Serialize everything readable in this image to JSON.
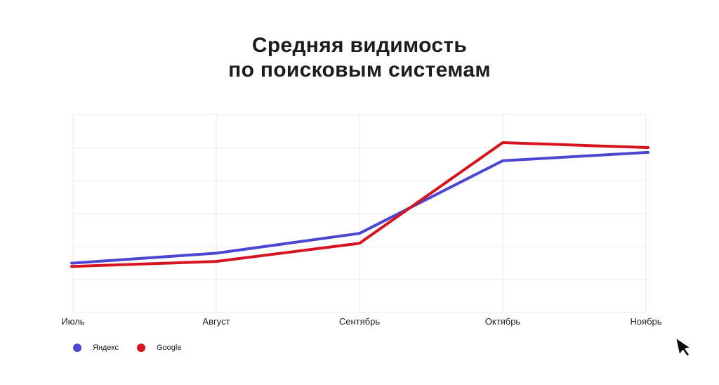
{
  "header": {
    "title": "Средняя видимость\nпо поисковым системам"
  },
  "chart_data": {
    "type": "line",
    "title": "Средняя видимость по поисковым системам",
    "categories": [
      "Июль",
      "Август",
      "Сентябрь",
      "Октябрь",
      "Ноябрь"
    ],
    "series": [
      {
        "name": "Яндекс",
        "color": "#4c47d0",
        "values": [
          1.5,
          1.8,
          2.4,
          4.6,
          4.85
        ]
      },
      {
        "name": "Google",
        "color": "#d5141f",
        "values": [
          1.4,
          1.55,
          2.1,
          5.15,
          5.0
        ]
      }
    ],
    "xlabel": "",
    "ylabel": "",
    "ylim": [
      0,
      6
    ],
    "y_grid_step": 1,
    "y_tick_labels_visible": false,
    "grid": true,
    "gridline_color": "#e9e9e9",
    "legend_position": "bottom-left",
    "line_width": 4
  },
  "cursor": {
    "icon": "arrow-pointer"
  }
}
